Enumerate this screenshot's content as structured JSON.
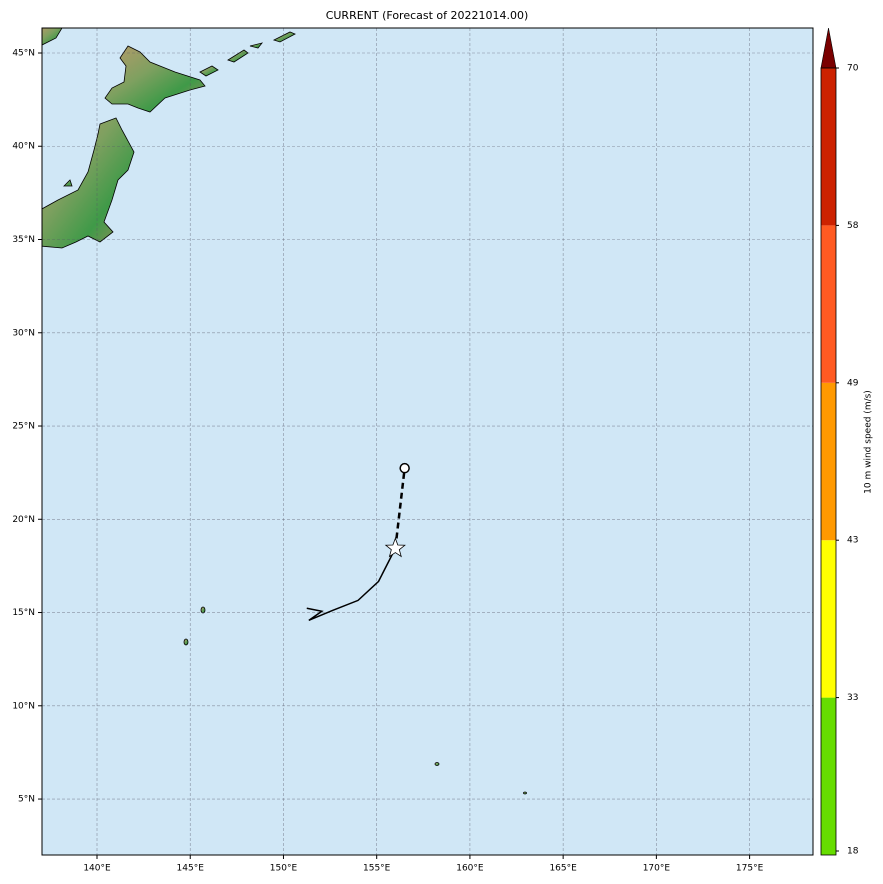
{
  "chart_data": {
    "type": "map",
    "title": "CURRENT (Forecast of 20221014.00)",
    "xlim": [
      137.05,
      178.4
    ],
    "ylim": [
      2.0,
      46.34
    ],
    "xticks": [
      {
        "value": 140,
        "label": "140°E"
      },
      {
        "value": 145,
        "label": "145°E"
      },
      {
        "value": 150,
        "label": "150°E"
      },
      {
        "value": 155,
        "label": "155°E"
      },
      {
        "value": 160,
        "label": "160°E"
      },
      {
        "value": 165,
        "label": "165°E"
      },
      {
        "value": 170,
        "label": "170°E"
      },
      {
        "value": 175,
        "label": "175°E"
      }
    ],
    "yticks": [
      {
        "value": 5,
        "label": "5°N"
      },
      {
        "value": 10,
        "label": "10°N"
      },
      {
        "value": 15,
        "label": "15°N"
      },
      {
        "value": 20,
        "label": "20°N"
      },
      {
        "value": 25,
        "label": "25°N"
      },
      {
        "value": 30,
        "label": "30°N"
      },
      {
        "value": 35,
        "label": "35°N"
      },
      {
        "value": 40,
        "label": "40°N"
      },
      {
        "value": 45,
        "label": "45°N"
      }
    ],
    "grid": true,
    "ocean_color": "#d0e7f6",
    "tracks": {
      "observed": {
        "lon": [
          151.25,
          152.06,
          151.36,
          152.65,
          154.0,
          155.1,
          156.0
        ],
        "lat": [
          15.23,
          15.07,
          14.58,
          15.12,
          15.65,
          16.67,
          18.44
        ],
        "color": "#000000"
      },
      "forecast": {
        "lon": [
          156.0,
          156.5
        ],
        "lat": [
          18.44,
          22.74
        ],
        "color": "#000000"
      }
    },
    "colorbar": {
      "label": "10 m wind speed (m/s)",
      "levels": [
        18,
        33,
        43,
        49,
        58,
        70
      ],
      "colors": [
        "#66dd00",
        "#ffff00",
        "#ff9900",
        "#ff5a22",
        "#cc2200"
      ],
      "extend_color": "#7a0000"
    }
  }
}
